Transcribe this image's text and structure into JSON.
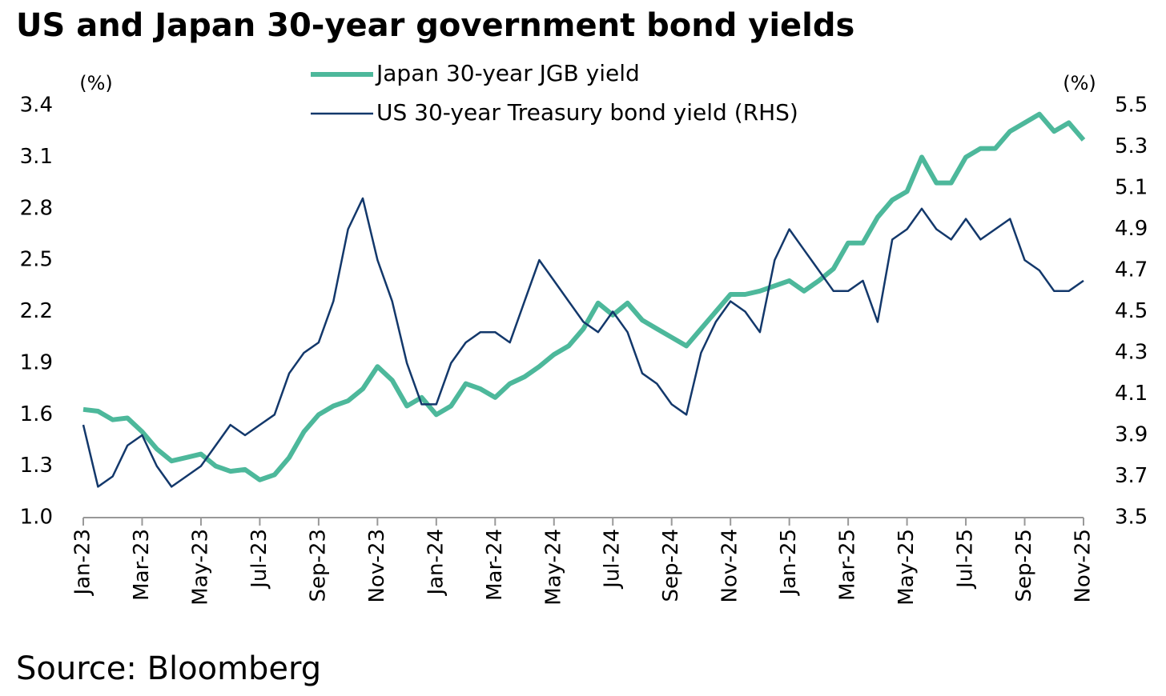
{
  "chart_data": {
    "type": "line",
    "title": "US and Japan 30-year government bond yields",
    "ylabel": "(%)",
    "y2label": "(%)",
    "source": "Source: Bloomberg",
    "categories": [
      "Jan-23",
      null,
      null,
      null,
      "Mar-23",
      null,
      null,
      null,
      "May-23",
      null,
      null,
      null,
      "Jul-23",
      null,
      null,
      null,
      "Sep-23",
      null,
      null,
      null,
      "Nov-23",
      null,
      null,
      null,
      "Jan-24",
      null,
      null,
      null,
      "Mar-24",
      null,
      null,
      null,
      "May-24",
      null,
      null,
      null,
      "Jul-24",
      null,
      null,
      null,
      "Sep-24",
      null,
      null,
      null,
      "Nov-24",
      null,
      null,
      null,
      "Jan-25",
      null,
      null,
      null,
      "Mar-25",
      null,
      null,
      null,
      "May-25",
      null,
      null,
      null,
      "Jul-25",
      null,
      null,
      null,
      "Sep-25",
      null,
      null,
      null,
      "Nov-25"
    ],
    "series": [
      {
        "name": "Japan 30-year JGB yield",
        "color": "#4db89b",
        "axis": "y",
        "values": [
          1.63,
          1.62,
          1.57,
          1.58,
          1.5,
          1.4,
          1.33,
          1.35,
          1.37,
          1.3,
          1.27,
          1.28,
          1.22,
          1.25,
          1.35,
          1.5,
          1.6,
          1.65,
          1.68,
          1.75,
          1.88,
          1.8,
          1.65,
          1.7,
          1.6,
          1.65,
          1.78,
          1.75,
          1.7,
          1.78,
          1.82,
          1.88,
          1.95,
          2.0,
          2.1,
          2.25,
          2.18,
          2.25,
          2.15,
          2.1,
          2.05,
          2.0,
          2.1,
          2.2,
          2.3,
          2.3,
          2.32,
          2.35,
          2.38,
          2.32,
          2.38,
          2.45,
          2.6,
          2.6,
          2.75,
          2.85,
          2.9,
          3.1,
          2.95,
          2.95,
          3.1,
          3.15,
          3.15,
          3.25,
          3.3,
          3.35,
          3.25,
          3.3,
          3.2
        ]
      },
      {
        "name": "US 30-year Treasury bond yield (RHS)",
        "color": "#13386b",
        "axis": "y2",
        "values": [
          3.95,
          3.65,
          3.7,
          3.85,
          3.9,
          3.75,
          3.65,
          3.7,
          3.75,
          3.85,
          3.95,
          3.9,
          3.95,
          4.0,
          4.2,
          4.3,
          4.35,
          4.55,
          4.9,
          5.05,
          4.75,
          4.55,
          4.25,
          4.05,
          4.05,
          4.25,
          4.35,
          4.4,
          4.4,
          4.35,
          4.55,
          4.75,
          4.65,
          4.55,
          4.45,
          4.4,
          4.5,
          4.4,
          4.2,
          4.15,
          4.05,
          4.0,
          4.3,
          4.45,
          4.55,
          4.5,
          4.4,
          4.75,
          4.9,
          4.8,
          4.7,
          4.6,
          4.6,
          4.65,
          4.45,
          4.85,
          4.9,
          5.0,
          4.9,
          4.85,
          4.95,
          4.85,
          4.9,
          4.95,
          4.75,
          4.7,
          4.6,
          4.6,
          4.65
        ]
      }
    ],
    "ylim": [
      1.0,
      3.4
    ],
    "yticks": [
      {
        "value": 1.0,
        "label": "1.0"
      },
      1.3,
      1.6,
      1.9,
      2.2,
      2.5,
      2.8,
      3.1,
      3.4
    ],
    "y2lim": [
      3.5,
      5.5
    ],
    "y2ticks": [
      3.5,
      3.7,
      3.9,
      4.1,
      4.3,
      4.5,
      4.7,
      4.9,
      5.1,
      5.3,
      5.5
    ],
    "legend": "top"
  }
}
